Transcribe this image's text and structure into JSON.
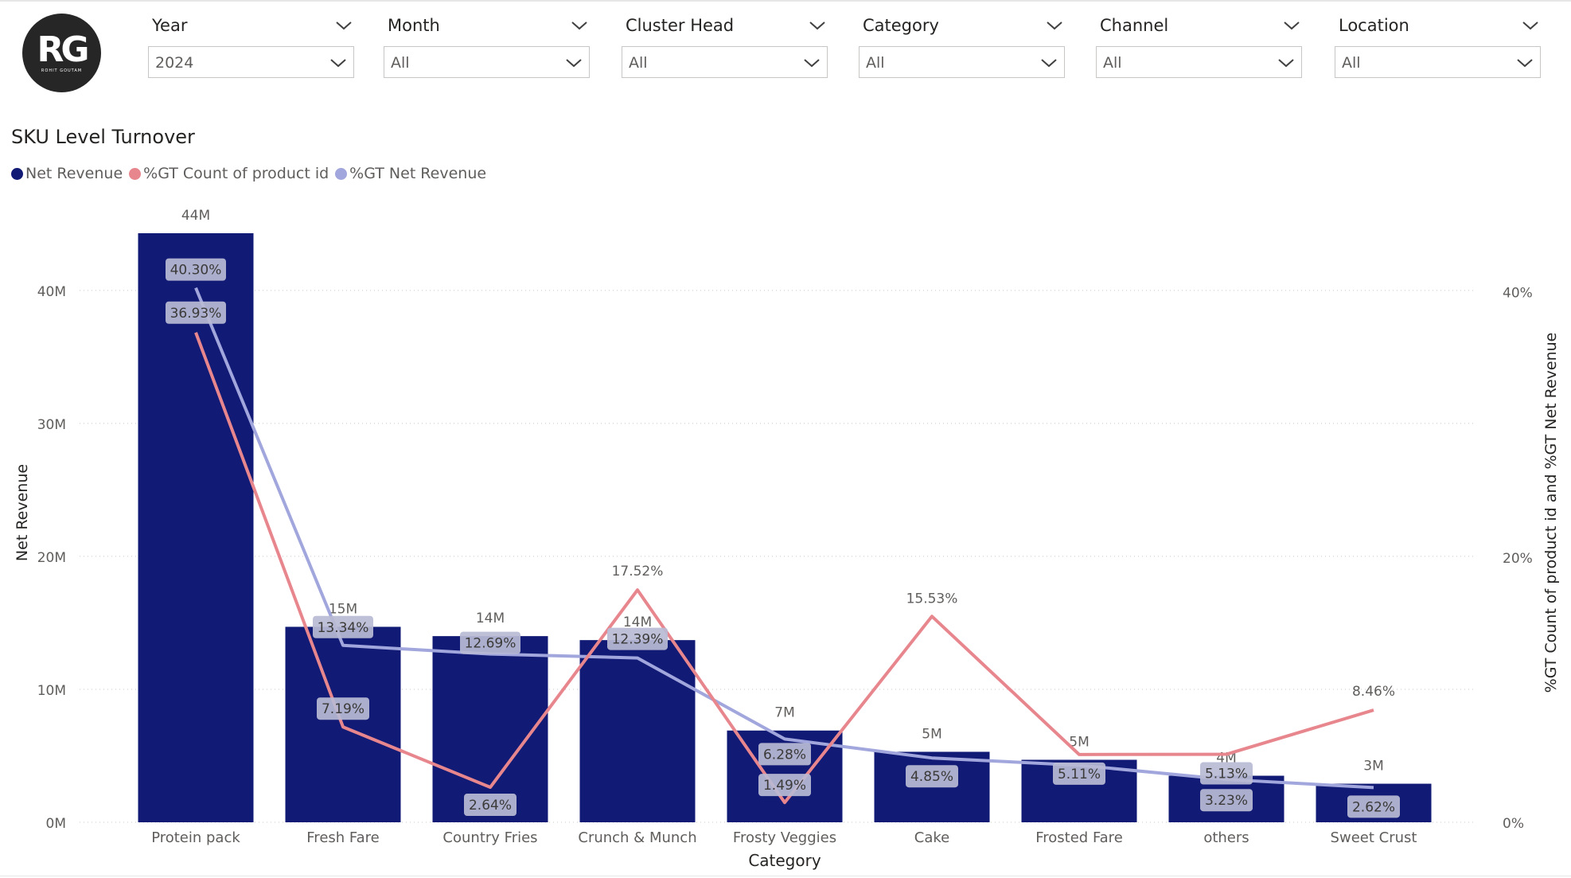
{
  "logo": {
    "mark": "RG",
    "sub": "ROHIT GOUTAM"
  },
  "slicers": [
    {
      "title": "Year",
      "value": "2024"
    },
    {
      "title": "Month",
      "value": "All"
    },
    {
      "title": "Cluster Head",
      "value": "All"
    },
    {
      "title": "Category",
      "value": "All"
    },
    {
      "title": "Channel",
      "value": "All"
    },
    {
      "title": "Location",
      "value": "All"
    }
  ],
  "colors": {
    "bar": "#111a74",
    "gt_count": "#e8868e",
    "gt_revenue": "#a1a6dc",
    "label_bg": "#b9bbd4"
  },
  "chart_data": {
    "type": "bar",
    "title": "SKU Level Turnover",
    "xlabel": "Category",
    "ylabel": "Net Revenue",
    "y2label": "%GT Count of product id and %GT Net Revenue",
    "categories": [
      "Protein pack",
      "Fresh Fare",
      "Country Fries",
      "Crunch & Munch",
      "Frosty Veggies",
      "Cake",
      "Frosted Fare",
      "others",
      "Sweet Crust"
    ],
    "series": [
      {
        "name": "Net Revenue",
        "type": "bar",
        "axis": "left",
        "values": [
          44.3,
          14.7,
          14.0,
          13.7,
          6.9,
          5.3,
          4.7,
          3.5,
          2.9
        ],
        "labels": [
          "44M",
          "15M",
          "14M",
          "14M",
          "7M",
          "5M",
          "5M",
          "4M",
          "3M"
        ]
      },
      {
        "name": "%GT Count of product id",
        "type": "line",
        "axis": "right",
        "values": [
          36.93,
          7.19,
          2.64,
          17.52,
          1.49,
          15.53,
          5.11,
          5.13,
          8.46
        ],
        "labels": [
          "36.93%",
          "7.19%",
          "2.64%",
          "17.52%",
          "1.49%",
          "15.53%",
          "5.11%",
          "5.13%",
          "8.46%"
        ]
      },
      {
        "name": "%GT Net Revenue",
        "type": "line",
        "axis": "right",
        "values": [
          40.3,
          13.34,
          12.69,
          12.39,
          6.28,
          4.85,
          4.3,
          3.23,
          2.62
        ],
        "labels": [
          "40.30%",
          "13.34%",
          "12.69%",
          "12.39%",
          "6.28%",
          "4.85%",
          "",
          "3.23%",
          "2.62%"
        ]
      }
    ],
    "ylim": [
      0,
      44.3
    ],
    "y_ticks": [
      0,
      10,
      20,
      30,
      40
    ],
    "y_tick_labels": [
      "0M",
      "10M",
      "20M",
      "30M",
      "40M"
    ],
    "y2lim": [
      0,
      47.6
    ],
    "y2_ticks": [
      0,
      20,
      40
    ],
    "y2_tick_labels": [
      "0%",
      "20%",
      "40%"
    ],
    "legend": "top-left",
    "grid": true
  }
}
